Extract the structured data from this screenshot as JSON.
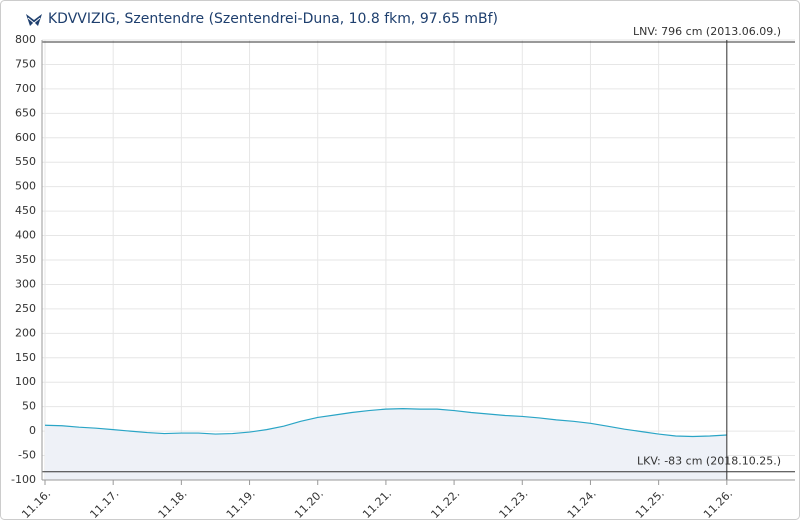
{
  "chart_data": {
    "type": "area",
    "title": "KDVVIZIG, Szentendre (Szentendrei-Duna, 10.8 fkm, 97.65 mBf)",
    "x": [
      16,
      16.25,
      16.5,
      16.75,
      17,
      17.25,
      17.5,
      17.75,
      18,
      18.25,
      18.5,
      18.75,
      19,
      19.25,
      19.5,
      19.75,
      20,
      20.25,
      20.5,
      20.75,
      21,
      21.25,
      21.5,
      21.75,
      22,
      22.25,
      22.5,
      22.75,
      23,
      23.25,
      23.5,
      23.75,
      24,
      24.25,
      24.5,
      24.75,
      25,
      25.25,
      25.5,
      25.75,
      26
    ],
    "values": [
      12,
      11,
      8,
      6,
      3,
      0,
      -3,
      -5,
      -4,
      -4,
      -6,
      -5,
      -2,
      3,
      10,
      20,
      28,
      33,
      38,
      42,
      45,
      46,
      45,
      45,
      42,
      38,
      35,
      32,
      30,
      27,
      23,
      20,
      16,
      10,
      4,
      -1,
      -6,
      -10,
      -11,
      -10,
      -8
    ],
    "color": "#2aa5c6",
    "fill": "#eef1f7",
    "xlim": [
      15.956,
      27
    ],
    "xticks": [
      {
        "value": 16,
        "label": "11.16."
      },
      {
        "value": 17,
        "label": "11.17."
      },
      {
        "value": 18,
        "label": "11.18."
      },
      {
        "value": 19,
        "label": "11.19."
      },
      {
        "value": 20,
        "label": "11.20."
      },
      {
        "value": 21,
        "label": "11.21."
      },
      {
        "value": 22,
        "label": "11.22."
      },
      {
        "value": 23,
        "label": "11.23."
      },
      {
        "value": 24,
        "label": "11.24."
      },
      {
        "value": 25,
        "label": "11.25."
      },
      {
        "value": 26,
        "label": "11.26."
      }
    ],
    "ylim": [
      -100,
      800
    ],
    "yticks": [
      -100,
      -50,
      0,
      50,
      100,
      150,
      200,
      250,
      300,
      350,
      400,
      450,
      500,
      550,
      600,
      650,
      700,
      750,
      800
    ],
    "grid": true,
    "marker_x": 26,
    "reference_lines": [
      {
        "label": "LNV: 796 cm (2013.06.09.)",
        "value": 796
      },
      {
        "label": "LKV: -83 cm (2018.10.25.)",
        "value": -83
      }
    ]
  }
}
